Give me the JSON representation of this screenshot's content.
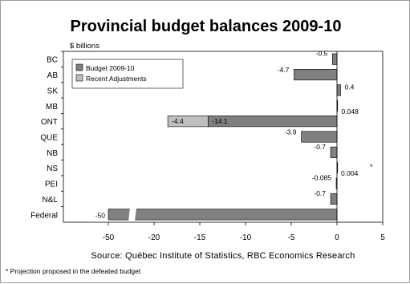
{
  "chart_data": {
    "type": "bar",
    "orientation": "horizontal",
    "title": "Provincial budget balances 2009-10",
    "unit_label": "$ billions",
    "xlim": [
      -55,
      5
    ],
    "x_ticks": [
      -50,
      -20,
      -15,
      -10,
      -5,
      0,
      5
    ],
    "axis_break": "between -50 and -20",
    "grid": false,
    "legend_position": "top-left",
    "categories": [
      "BC",
      "AB",
      "SK",
      "MB",
      "ONT",
      "QUE",
      "NB",
      "NS",
      "PEI",
      "N&L",
      "Federal"
    ],
    "series": [
      {
        "name": "Budget 2009-10",
        "color": "#808080",
        "values": [
          -0.5,
          -4.7,
          0.4,
          0.048,
          -14.1,
          -3.9,
          -0.7,
          0.004,
          -0.085,
          -0.7,
          -50
        ],
        "labels": [
          "-0.5",
          "-4.7",
          "0.4",
          "0.048",
          "-14.1",
          "-3.9",
          "-0.7",
          "0.004",
          "-0.085",
          "-0.7",
          "-50"
        ]
      },
      {
        "name": "Recent Adjustments",
        "color": "#bfbfbf",
        "values": [
          null,
          null,
          null,
          null,
          -4.4,
          null,
          null,
          null,
          null,
          null,
          null
        ],
        "labels": [
          "",
          "",
          "",
          "",
          "-4.4",
          "",
          "",
          "",
          "",
          "",
          ""
        ]
      }
    ],
    "annotations": [
      {
        "category": "NS",
        "text": "*"
      }
    ],
    "source": "Source: Québec Institute of Statistics, RBC Economics Research",
    "footnote": "* Projection proposed in the defeated budget"
  }
}
